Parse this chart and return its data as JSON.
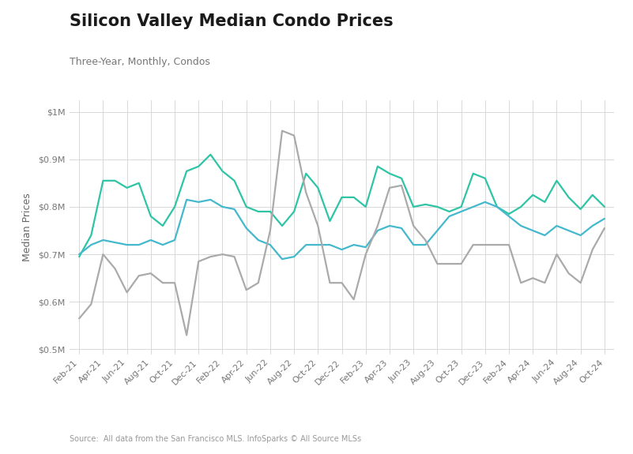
{
  "title": "Silicon Valley Median Condo Prices",
  "subtitle": "Three-Year, Monthly, Condos",
  "ylabel": "Median Prices",
  "source": "Source:  All data from the San Francisco MLS. InfoSparks © All Source MLSs",
  "ylim": [
    490000,
    1025000
  ],
  "yticks": [
    500000,
    600000,
    700000,
    800000,
    900000,
    1000000
  ],
  "ytick_labels": [
    "$0.5M",
    "$0.6M",
    "$0.7M",
    "$0.8M",
    "$0.9M",
    "$1M"
  ],
  "colors": {
    "san_mateo": "#2ec4a5",
    "santa_clara": "#44b8cc",
    "santa_cruz": "#aaaaaa"
  },
  "x_tick_labels": [
    "Feb-21",
    "Apr-21",
    "Jun-21",
    "Aug-21",
    "Oct-21",
    "Dec-21",
    "Feb-22",
    "Apr-22",
    "Jun-22",
    "Aug-22",
    "Oct-22",
    "Dec-22",
    "Feb-23",
    "Apr-23",
    "Jun-23",
    "Aug-23",
    "Oct-23",
    "Dec-23",
    "Feb-24",
    "Apr-24",
    "Jun-24",
    "Aug-24",
    "Oct-24"
  ],
  "san_mateo": [
    695000,
    740000,
    855000,
    855000,
    840000,
    850000,
    780000,
    760000,
    800000,
    875000,
    885000,
    910000,
    875000,
    855000,
    800000,
    790000,
    790000,
    760000,
    790000,
    870000,
    840000,
    770000,
    820000,
    820000,
    800000,
    885000,
    870000,
    860000,
    800000,
    805000,
    800000,
    790000,
    800000,
    870000,
    860000,
    800000,
    785000,
    800000,
    825000,
    810000,
    855000,
    820000,
    795000,
    825000,
    800000
  ],
  "santa_clara": [
    700000,
    720000,
    730000,
    725000,
    720000,
    720000,
    730000,
    720000,
    730000,
    815000,
    810000,
    815000,
    800000,
    795000,
    755000,
    730000,
    720000,
    690000,
    695000,
    720000,
    720000,
    720000,
    710000,
    720000,
    715000,
    750000,
    760000,
    755000,
    720000,
    720000,
    750000,
    780000,
    790000,
    800000,
    810000,
    800000,
    780000,
    760000,
    750000,
    740000,
    760000,
    750000,
    740000,
    760000,
    775000
  ],
  "santa_cruz": [
    565000,
    595000,
    700000,
    670000,
    620000,
    655000,
    660000,
    640000,
    640000,
    530000,
    685000,
    695000,
    700000,
    695000,
    625000,
    640000,
    750000,
    960000,
    950000,
    830000,
    760000,
    640000,
    640000,
    605000,
    700000,
    760000,
    840000,
    845000,
    760000,
    730000,
    680000,
    680000,
    680000,
    720000,
    720000,
    720000,
    720000,
    640000,
    650000,
    640000,
    700000,
    660000,
    640000,
    710000,
    755000
  ],
  "background_color": "#ffffff",
  "grid_color": "#d8d8d8",
  "title_fontsize": 15,
  "subtitle_fontsize": 9,
  "axis_label_fontsize": 8,
  "ylabel_fontsize": 9,
  "legend_fontsize": 10,
  "source_fontsize": 7,
  "linewidth": 1.6
}
